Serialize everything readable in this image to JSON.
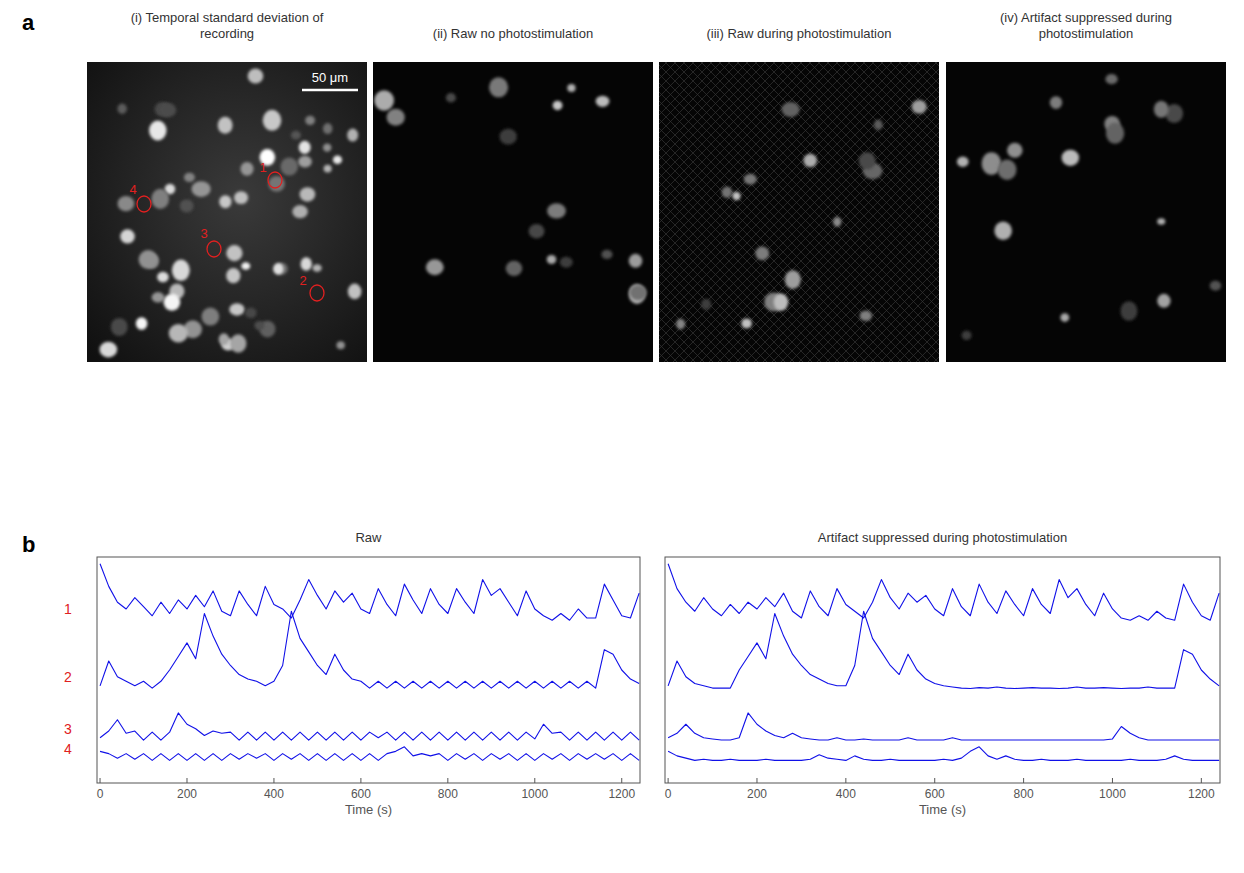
{
  "figure": {
    "panel_labels": [
      "a",
      "b"
    ],
    "images": [
      {
        "title": "(i) Temporal standard deviation of recording"
      },
      {
        "title": "(ii) Raw no photostimulation"
      },
      {
        "title": "(iii) Raw during photostimulation"
      },
      {
        "title": "(iv) Artifact suppressed during photostimulation"
      }
    ],
    "scale_bar": "50 μm",
    "roi_labels": [
      "1",
      "2",
      "3",
      "4"
    ]
  },
  "chart_data": [
    {
      "type": "line",
      "title": "Raw",
      "x_label": "Time (s)",
      "tick_labels": "x",
      "x": [
        0,
        20,
        40,
        60,
        80,
        100,
        120,
        140,
        160,
        180,
        200,
        220,
        240,
        260,
        280,
        300,
        320,
        340,
        360,
        380,
        400,
        420,
        440,
        460,
        480,
        500,
        520,
        540,
        560,
        580,
        600,
        620,
        640,
        660,
        680,
        700,
        720,
        740,
        760,
        780,
        800,
        820,
        840,
        860,
        880,
        900,
        920,
        940,
        960,
        980,
        1000,
        1020,
        1040,
        1060,
        1080,
        1100,
        1120,
        1140,
        1160,
        1180,
        1200,
        1220,
        1240
      ],
      "xlim": [
        -7,
        1242
      ],
      "xticks": [
        0,
        200,
        400,
        600,
        800,
        1000,
        1200
      ],
      "ylim": [
        0,
        100
      ],
      "series": [
        {
          "name": "1",
          "color": "#1010e8",
          "values": [
            97,
            87,
            80,
            77,
            82,
            78,
            74,
            80,
            75,
            81,
            77,
            83,
            78,
            85,
            76,
            74,
            85,
            79,
            74,
            87,
            79,
            77,
            73,
            81,
            90,
            83,
            77,
            85,
            80,
            84,
            77,
            75,
            86,
            79,
            74,
            88,
            81,
            75,
            86,
            79,
            75,
            86,
            80,
            75,
            90,
            83,
            86,
            80,
            74,
            85,
            77,
            74,
            72,
            75,
            72,
            77,
            73,
            73,
            88,
            81,
            74,
            73,
            84
          ]
        },
        {
          "name": "2",
          "color": "#1010e8",
          "values": [
            43,
            54,
            47,
            45,
            43,
            45,
            42,
            45,
            50,
            56,
            62,
            55,
            75,
            65,
            57,
            52,
            48,
            46,
            45,
            43,
            45,
            52,
            76,
            64,
            58,
            52,
            48,
            57,
            50,
            46,
            45,
            42,
            45,
            42,
            45,
            42,
            45,
            42,
            45,
            42,
            45,
            42,
            45,
            42,
            45,
            42,
            45,
            42,
            45,
            42,
            45,
            42,
            45,
            42,
            45,
            42,
            45,
            42,
            59,
            57,
            50,
            46,
            44
          ]
        },
        {
          "name": "3",
          "color": "#1010e8",
          "values": [
            20,
            23,
            28,
            22,
            23,
            19,
            22.5,
            19,
            22.5,
            31,
            26,
            24,
            21,
            23,
            22,
            22.5,
            19,
            22.5,
            19,
            22.5,
            19,
            22.5,
            19,
            22.5,
            19,
            22.5,
            19,
            22.5,
            19,
            22.5,
            19,
            22.5,
            20,
            22.5,
            19,
            22.5,
            19,
            22.5,
            19,
            22.5,
            19,
            22.5,
            19,
            22.5,
            19,
            22.5,
            19,
            22.5,
            19,
            22.5,
            19.5,
            26,
            22,
            22.5,
            19,
            22.5,
            19,
            22.5,
            19,
            22.5,
            19,
            22.5,
            19
          ]
        },
        {
          "name": "4",
          "color": "#1010e8",
          "values": [
            14,
            13,
            11,
            13,
            10.5,
            13,
            10,
            13,
            10,
            13,
            10,
            13,
            10,
            13,
            10,
            13,
            10.5,
            13,
            11,
            13,
            10,
            13,
            10.5,
            13,
            10,
            13,
            10,
            13,
            10,
            13,
            10,
            13,
            10,
            13,
            14,
            16,
            12,
            13,
            12,
            13,
            10,
            13,
            10.5,
            13,
            10,
            13,
            10.5,
            13,
            10,
            13,
            10,
            13,
            10.5,
            13,
            10,
            13,
            10.5,
            13,
            10.5,
            13,
            10,
            13,
            10
          ]
        }
      ]
    },
    {
      "type": "line",
      "title": "Artifact suppressed during photostimulation",
      "x_label": "Time (s)",
      "tick_labels": "x",
      "x": [
        0,
        20,
        40,
        60,
        80,
        100,
        120,
        140,
        160,
        180,
        200,
        220,
        240,
        260,
        280,
        300,
        320,
        340,
        360,
        380,
        400,
        420,
        440,
        460,
        480,
        500,
        520,
        540,
        560,
        580,
        600,
        620,
        640,
        660,
        680,
        700,
        720,
        740,
        760,
        780,
        800,
        820,
        840,
        860,
        880,
        900,
        920,
        940,
        960,
        980,
        1000,
        1020,
        1040,
        1060,
        1080,
        1100,
        1120,
        1140,
        1160,
        1180,
        1200,
        1220,
        1240
      ],
      "xlim": [
        -7,
        1242
      ],
      "xticks": [
        0,
        200,
        400,
        600,
        800,
        1000,
        1200
      ],
      "ylim": [
        0,
        100
      ],
      "series": [
        {
          "color": "#1010e8",
          "values": [
            97,
            86,
            80,
            76,
            82,
            77,
            74,
            79,
            75,
            80,
            77,
            82,
            78,
            84,
            76,
            73,
            85,
            78,
            74,
            86,
            79,
            76,
            73,
            80,
            90,
            82,
            77,
            84,
            80,
            83,
            77,
            74,
            86,
            78,
            74,
            88,
            80,
            75,
            85,
            79,
            74,
            86,
            79,
            75,
            90,
            82,
            86,
            79,
            74,
            84,
            77,
            73,
            72,
            74,
            72,
            76,
            73,
            72,
            88,
            80,
            74,
            72,
            84
          ]
        },
        {
          "color": "#1010e8",
          "values": [
            43,
            54,
            47,
            44,
            43,
            42,
            42,
            42,
            50,
            56,
            62,
            55,
            75,
            65,
            57,
            52,
            48,
            46,
            44,
            43,
            43,
            52,
            76,
            64,
            58,
            52,
            48,
            57,
            50,
            46,
            44,
            43,
            42.5,
            42,
            41.8,
            42.2,
            42,
            42.5,
            42,
            41.8,
            42,
            42.2,
            42,
            42,
            41.8,
            42,
            42.5,
            42,
            42,
            42.2,
            42,
            41.8,
            42,
            42,
            42.5,
            42,
            42,
            42,
            59,
            57,
            50,
            46,
            43
          ]
        },
        {
          "color": "#1010e8",
          "values": [
            20,
            22,
            26,
            22,
            20,
            19.5,
            19,
            19,
            20,
            31,
            26,
            23,
            21,
            20,
            22,
            20,
            19.5,
            19,
            19,
            20,
            19,
            19,
            19.5,
            19,
            19,
            19,
            19,
            20,
            19,
            19,
            19,
            19,
            20,
            19,
            19,
            19,
            19,
            19,
            19,
            19,
            19,
            19,
            19,
            19,
            19,
            19,
            19,
            19,
            19,
            19,
            19.5,
            25,
            22,
            20,
            19,
            19,
            19,
            19,
            19,
            19,
            19,
            19,
            19
          ]
        },
        {
          "color": "#1010e8",
          "values": [
            14,
            12,
            11,
            10,
            10.5,
            10,
            10,
            10.5,
            10,
            10,
            10,
            10.5,
            10,
            10,
            10,
            10,
            10.5,
            12.5,
            11,
            10.5,
            10,
            12,
            10.5,
            10,
            10,
            10.5,
            10,
            10,
            10,
            10,
            10,
            10.5,
            10,
            11,
            14,
            16,
            12,
            10.5,
            12,
            10.5,
            10,
            10,
            10.5,
            10,
            10,
            10,
            10.5,
            10,
            10,
            10,
            10,
            10,
            10.5,
            10,
            10,
            10,
            10.5,
            12,
            10.5,
            10,
            10,
            10,
            10
          ]
        }
      ]
    }
  ]
}
